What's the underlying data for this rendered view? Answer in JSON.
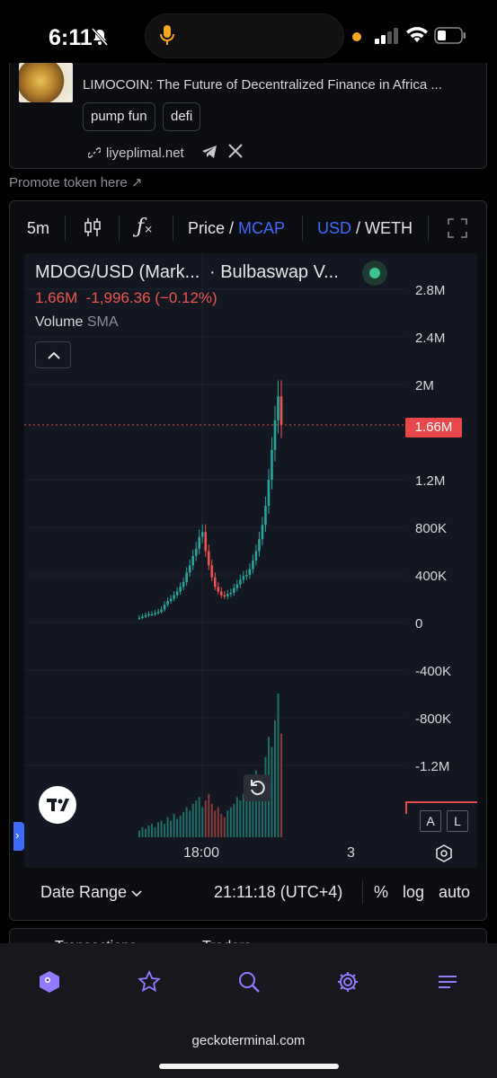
{
  "status_bar": {
    "time": "6:11"
  },
  "token": {
    "description": "LIMOCOIN: The Future of Decentralized Finance in Africa ...",
    "tags": [
      "pump fun",
      "defi"
    ],
    "website": "liyeplimal.net"
  },
  "promote_link": "Promote token here ↗",
  "toolbar": {
    "interval": "5m",
    "price_label": "Price",
    "mcap_label": "MCAP",
    "usd_label": "USD",
    "weth_label": "WETH"
  },
  "legend": {
    "pair": "MDOG/USD (Mark...",
    "dex": "· Bulbaswap V...",
    "last": "1.66M",
    "change": "-1,996.36 (−0.12%)",
    "volume": "Volume",
    "sma": "SMA"
  },
  "price_axis": {
    "ticks": [
      "2.8M",
      "2.4M",
      "2M",
      "1.66M",
      "1.2M",
      "800K",
      "400K",
      "0",
      "-400K",
      "-800K",
      "-1.2M"
    ],
    "current": "1.66M"
  },
  "time_axis": {
    "labels": [
      "18:00",
      "3"
    ]
  },
  "scale_buttons": {
    "a": "A",
    "l": "L"
  },
  "bottom_bar": {
    "date_range": "Date Range",
    "time": "21:11:18 (UTC+4)",
    "percent": "%",
    "log": "log",
    "auto": "auto"
  },
  "next_card": {
    "tab1": "Transactions",
    "tab2": "Traders"
  },
  "browser": {
    "url": "geckoterminal.com"
  },
  "colors": {
    "accent": "#3d6bff",
    "up": "#26a69a",
    "down": "#ef5350",
    "badge": "#e8484a"
  },
  "chart_data": {
    "type": "candlestick",
    "ylabel": "",
    "ylim": [
      -1400000,
      3000000
    ],
    "x_tick_labels": [
      "18:00",
      "3"
    ],
    "current_price": 1660000,
    "ohlc_close_approx": [
      40000,
      50000,
      60000,
      70000,
      70000,
      80000,
      90000,
      110000,
      150000,
      180000,
      200000,
      230000,
      260000,
      300000,
      340000,
      420000,
      480000,
      560000,
      620000,
      720000,
      760000,
      600000,
      480000,
      380000,
      300000,
      260000,
      230000,
      220000,
      240000,
      250000,
      290000,
      320000,
      360000,
      390000,
      400000,
      450000,
      520000,
      600000,
      700000,
      820000,
      980000,
      1200000,
      1450000,
      1700000,
      1900000,
      1660000
    ],
    "volume_relative": [
      4,
      6,
      5,
      7,
      8,
      6,
      9,
      10,
      8,
      12,
      10,
      14,
      11,
      13,
      15,
      18,
      16,
      20,
      22,
      24,
      18,
      22,
      26,
      20,
      16,
      18,
      14,
      12,
      16,
      18,
      20,
      24,
      22,
      26,
      30,
      28,
      32,
      40,
      36,
      30,
      48,
      60,
      54,
      70,
      86,
      62
    ]
  }
}
